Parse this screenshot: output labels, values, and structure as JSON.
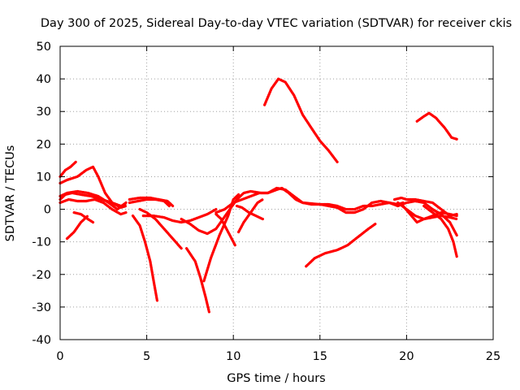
{
  "chart_data": {
    "type": "line",
    "title": "Day 300 of 2025, Sidereal Day-to-day VTEC variation (SDTVAR) for receiver ckis",
    "xlabel": "GPS time / hours",
    "ylabel": "SDTVAR / TECUs",
    "xlim": [
      0,
      25
    ],
    "ylim": [
      -40,
      50
    ],
    "xticks": [
      0,
      5,
      10,
      15,
      20,
      25
    ],
    "yticks": [
      -40,
      -30,
      -20,
      -10,
      0,
      10,
      20,
      30,
      40,
      50
    ],
    "grid": true,
    "color": "#ff0000",
    "series": [
      {
        "name": "trace-1",
        "points": [
          [
            11.8,
            32
          ],
          [
            12.2,
            37
          ],
          [
            12.6,
            40
          ],
          [
            13.0,
            39
          ],
          [
            13.5,
            35
          ],
          [
            14.0,
            29
          ],
          [
            14.5,
            25
          ],
          [
            15.0,
            21
          ],
          [
            15.5,
            18
          ],
          [
            16.0,
            14.5
          ]
        ]
      },
      {
        "name": "trace-2",
        "points": [
          [
            20.6,
            27
          ],
          [
            21.0,
            28.5
          ],
          [
            21.3,
            29.5
          ],
          [
            21.7,
            28
          ],
          [
            22.2,
            25
          ],
          [
            22.6,
            22
          ],
          [
            22.9,
            21.5
          ]
        ]
      },
      {
        "name": "trace-3",
        "points": [
          [
            0.0,
            10
          ],
          [
            0.3,
            12
          ],
          [
            0.6,
            13
          ],
          [
            0.9,
            14.5
          ]
        ]
      },
      {
        "name": "trace-4",
        "points": [
          [
            0.0,
            8
          ],
          [
            0.4,
            9
          ],
          [
            1.0,
            10
          ],
          [
            1.5,
            12
          ],
          [
            1.9,
            13
          ],
          [
            2.2,
            10
          ],
          [
            2.6,
            5
          ],
          [
            3.0,
            2
          ],
          [
            3.5,
            0.5
          ],
          [
            3.8,
            1
          ]
        ]
      },
      {
        "name": "trace-5",
        "points": [
          [
            0.0,
            3
          ],
          [
            0.3,
            4.5
          ],
          [
            0.7,
            5
          ],
          [
            1.2,
            4.5
          ],
          [
            1.8,
            4
          ],
          [
            2.4,
            3
          ],
          [
            3.0,
            2
          ],
          [
            3.5,
            1
          ],
          [
            3.8,
            1.5
          ]
        ]
      },
      {
        "name": "trace-6",
        "points": [
          [
            0.0,
            2
          ],
          [
            0.5,
            3
          ],
          [
            1.0,
            2.5
          ],
          [
            1.5,
            2.5
          ],
          [
            2.0,
            3
          ],
          [
            2.5,
            2
          ],
          [
            3.0,
            0
          ],
          [
            3.5,
            -1.5
          ],
          [
            3.8,
            -1
          ]
        ]
      },
      {
        "name": "trace-7",
        "points": [
          [
            0.0,
            4
          ],
          [
            0.4,
            5
          ],
          [
            1.0,
            5.5
          ],
          [
            1.6,
            5
          ],
          [
            2.2,
            4
          ],
          [
            2.8,
            2
          ],
          [
            3.3,
            0
          ],
          [
            3.8,
            2
          ]
        ]
      },
      {
        "name": "trace-8",
        "points": [
          [
            0.4,
            -9
          ],
          [
            0.8,
            -7
          ],
          [
            1.2,
            -4
          ],
          [
            1.6,
            -2
          ]
        ]
      },
      {
        "name": "trace-9",
        "points": [
          [
            0.8,
            -1
          ],
          [
            1.2,
            -1.5
          ],
          [
            1.6,
            -3
          ],
          [
            1.9,
            -4
          ]
        ]
      },
      {
        "name": "trace-10",
        "points": [
          [
            4.0,
            2
          ],
          [
            4.5,
            2.5
          ],
          [
            5.0,
            3
          ],
          [
            5.5,
            3
          ],
          [
            6.0,
            2.5
          ],
          [
            6.3,
            1
          ]
        ]
      },
      {
        "name": "trace-11",
        "points": [
          [
            4.0,
            3
          ],
          [
            4.6,
            3.5
          ],
          [
            5.2,
            3.5
          ],
          [
            5.7,
            3
          ],
          [
            6.2,
            2.5
          ],
          [
            6.5,
            1
          ]
        ]
      },
      {
        "name": "trace-12",
        "points": [
          [
            4.2,
            -2
          ],
          [
            4.6,
            -5
          ],
          [
            4.9,
            -10
          ],
          [
            5.2,
            -16
          ],
          [
            5.4,
            -22
          ],
          [
            5.6,
            -28
          ]
        ]
      },
      {
        "name": "trace-13",
        "points": [
          [
            4.8,
            -2
          ],
          [
            5.4,
            -2
          ],
          [
            6.0,
            -2.5
          ],
          [
            6.5,
            -3.5
          ],
          [
            7.0,
            -4
          ],
          [
            7.5,
            -3.5
          ],
          [
            8.0,
            -2.5
          ],
          [
            8.5,
            -1.5
          ],
          [
            9.0,
            0
          ]
        ]
      },
      {
        "name": "trace-14",
        "points": [
          [
            4.6,
            0
          ],
          [
            5.0,
            -1
          ],
          [
            5.5,
            -3
          ],
          [
            6.0,
            -6
          ],
          [
            6.5,
            -9
          ],
          [
            7.0,
            -12
          ]
        ]
      },
      {
        "name": "trace-15",
        "points": [
          [
            7.3,
            -12
          ],
          [
            7.8,
            -16
          ],
          [
            8.1,
            -21
          ],
          [
            8.4,
            -27
          ],
          [
            8.6,
            -31.5
          ]
        ]
      },
      {
        "name": "trace-16",
        "points": [
          [
            8.3,
            -22
          ],
          [
            8.7,
            -15
          ],
          [
            9.2,
            -8
          ],
          [
            9.7,
            -2
          ],
          [
            10.0,
            3
          ],
          [
            10.3,
            4.5
          ]
        ]
      },
      {
        "name": "trace-17",
        "points": [
          [
            7.0,
            -3
          ],
          [
            7.5,
            -4.5
          ],
          [
            8.0,
            -6.5
          ],
          [
            8.5,
            -7.5
          ],
          [
            9.0,
            -6
          ],
          [
            9.4,
            -3
          ],
          [
            9.8,
            0
          ],
          [
            10.2,
            3
          ],
          [
            10.6,
            5
          ],
          [
            11.0,
            5.5
          ],
          [
            11.6,
            5
          ],
          [
            12.0,
            5
          ],
          [
            12.5,
            6
          ],
          [
            12.8,
            6.5
          ],
          [
            13.2,
            5
          ],
          [
            13.6,
            3
          ],
          [
            14.0,
            2
          ],
          [
            14.5,
            1.5
          ],
          [
            15.0,
            1.5
          ],
          [
            15.5,
            1.5
          ],
          [
            16.0,
            1
          ],
          [
            16.5,
            0
          ],
          [
            17.0,
            0
          ],
          [
            17.5,
            1
          ],
          [
            18.0,
            1
          ],
          [
            18.5,
            1.5
          ],
          [
            19.0,
            2
          ],
          [
            19.5,
            1.5
          ],
          [
            19.8,
            2
          ]
        ]
      },
      {
        "name": "trace-18",
        "points": [
          [
            9.0,
            -1
          ],
          [
            9.5,
            0
          ],
          [
            10.0,
            2
          ],
          [
            10.5,
            3
          ],
          [
            11.0,
            4
          ],
          [
            11.5,
            5
          ],
          [
            12.0,
            5
          ],
          [
            12.5,
            6.5
          ],
          [
            13.0,
            6
          ],
          [
            13.5,
            4
          ],
          [
            14.0,
            2
          ],
          [
            15.0,
            1.5
          ],
          [
            16.0,
            0.5
          ],
          [
            16.5,
            -1
          ],
          [
            17.0,
            -1
          ],
          [
            17.5,
            0
          ],
          [
            18.0,
            2
          ],
          [
            18.5,
            2.5
          ],
          [
            19.0,
            2
          ],
          [
            19.5,
            1
          ]
        ]
      },
      {
        "name": "trace-19",
        "points": [
          [
            9.0,
            -1.5
          ],
          [
            9.3,
            -3
          ],
          [
            9.6,
            -6
          ],
          [
            9.9,
            -9
          ],
          [
            10.1,
            -11
          ]
        ]
      },
      {
        "name": "trace-20",
        "points": [
          [
            10.3,
            -7
          ],
          [
            10.6,
            -4
          ],
          [
            11.0,
            -1
          ],
          [
            11.4,
            2
          ],
          [
            11.7,
            3
          ]
        ]
      },
      {
        "name": "trace-21",
        "points": [
          [
            10.2,
            1
          ],
          [
            10.5,
            0.5
          ],
          [
            10.9,
            -1
          ],
          [
            11.3,
            -2
          ],
          [
            11.7,
            -3
          ]
        ]
      },
      {
        "name": "trace-22",
        "points": [
          [
            14.2,
            -17.5
          ],
          [
            14.7,
            -15
          ],
          [
            15.3,
            -13.5
          ],
          [
            16.0,
            -12.5
          ],
          [
            16.6,
            -11
          ],
          [
            17.2,
            -8.5
          ],
          [
            17.8,
            -6
          ],
          [
            18.2,
            -4.5
          ]
        ]
      },
      {
        "name": "trace-23",
        "points": [
          [
            19.3,
            3
          ],
          [
            19.7,
            3.5
          ],
          [
            20.0,
            3
          ],
          [
            20.5,
            3
          ],
          [
            21.0,
            2.5
          ],
          [
            21.5,
            2
          ],
          [
            22.0,
            0
          ],
          [
            22.5,
            -2
          ],
          [
            22.9,
            -1.5
          ]
        ]
      },
      {
        "name": "trace-24",
        "points": [
          [
            19.5,
            1
          ],
          [
            20.0,
            2
          ],
          [
            20.5,
            2.5
          ],
          [
            21.0,
            2
          ],
          [
            21.5,
            0
          ],
          [
            21.8,
            -1
          ]
        ]
      },
      {
        "name": "trace-25",
        "points": [
          [
            19.5,
            2
          ],
          [
            20.0,
            0
          ],
          [
            20.5,
            -2
          ],
          [
            21.0,
            -3
          ],
          [
            21.5,
            -2.5
          ],
          [
            22.0,
            -2
          ],
          [
            22.5,
            -2.5
          ],
          [
            22.9,
            -3
          ]
        ]
      },
      {
        "name": "trace-26",
        "points": [
          [
            19.8,
            1
          ],
          [
            20.2,
            -1.5
          ],
          [
            20.6,
            -4
          ],
          [
            21.0,
            -3
          ],
          [
            21.5,
            -2
          ],
          [
            22.0,
            -1
          ],
          [
            22.5,
            -1.5
          ],
          [
            22.9,
            -2
          ]
        ]
      },
      {
        "name": "trace-27",
        "points": [
          [
            21.0,
            1
          ],
          [
            21.5,
            -1
          ],
          [
            22.0,
            -3
          ],
          [
            22.4,
            -6
          ],
          [
            22.7,
            -10
          ],
          [
            22.9,
            -14.5
          ]
        ]
      },
      {
        "name": "trace-28",
        "points": [
          [
            21.5,
            0
          ],
          [
            22.0,
            -1.5
          ],
          [
            22.5,
            -4
          ],
          [
            22.9,
            -8
          ]
        ]
      }
    ]
  }
}
